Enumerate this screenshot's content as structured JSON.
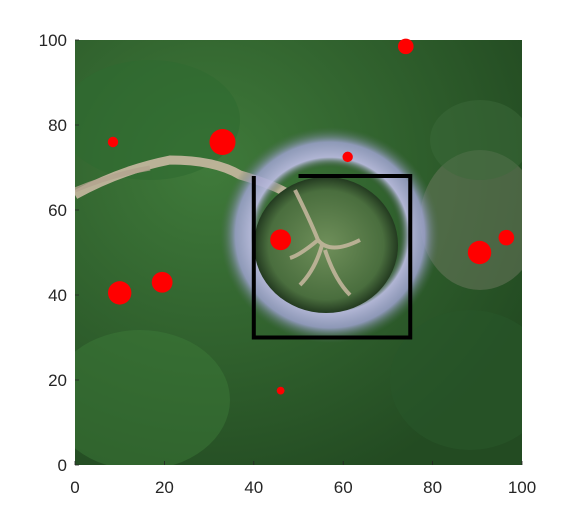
{
  "chart_data": {
    "type": "scatter",
    "title": "",
    "xlabel": "",
    "ylabel": "",
    "xlim": [
      0,
      100
    ],
    "ylim": [
      0,
      100
    ],
    "xticks": [
      "0",
      "20",
      "40",
      "60",
      "80",
      "100"
    ],
    "yticks": [
      "0",
      "20",
      "40",
      "60",
      "80",
      "100"
    ],
    "grid": false,
    "background": "satellite image of a volcanic crater surrounded by forest",
    "marker_color": "#ff0000",
    "points": [
      {
        "x": 74,
        "y": 98.5,
        "size": 6
      },
      {
        "x": 8.5,
        "y": 76,
        "size": 4
      },
      {
        "x": 33,
        "y": 76,
        "size": 10
      },
      {
        "x": 61,
        "y": 72.5,
        "size": 4
      },
      {
        "x": 46,
        "y": 53,
        "size": 8
      },
      {
        "x": 96.5,
        "y": 53.5,
        "size": 6
      },
      {
        "x": 90.5,
        "y": 50,
        "size": 9
      },
      {
        "x": 19.5,
        "y": 43,
        "size": 8
      },
      {
        "x": 10,
        "y": 40.5,
        "size": 9
      },
      {
        "x": 46,
        "y": 17.5,
        "size": 3
      }
    ],
    "path": {
      "color": "#000000",
      "points": [
        [
          50,
          68
        ],
        [
          75,
          68
        ],
        [
          75,
          30
        ],
        [
          40,
          30
        ],
        [
          40,
          68
        ]
      ]
    }
  }
}
